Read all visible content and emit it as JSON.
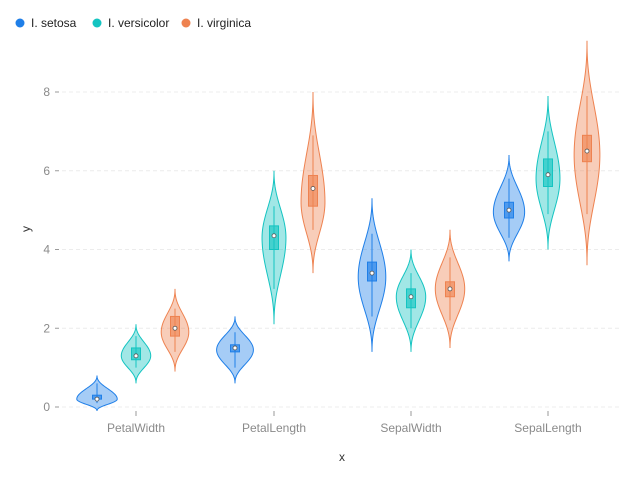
{
  "chart_data": {
    "type": "violin",
    "title": "",
    "xlabel": "x",
    "ylabel": "y",
    "ylim": [
      -0.2,
      9.6
    ],
    "yticks": [
      0,
      2,
      4,
      6,
      8
    ],
    "legend_position": "top-left",
    "grid": true,
    "categories": [
      "PetalWidth",
      "PetalLength",
      "SepalWidth",
      "SepalLength"
    ],
    "series": [
      {
        "name": "I. setosa",
        "color": "#1f7fe8",
        "groups": [
          {
            "min": 0.1,
            "q1": 0.2,
            "median": 0.2,
            "q3": 0.3,
            "max": 0.6,
            "kde_min": -0.1,
            "kde_max": 0.8,
            "peak_half_width": 0.22,
            "peak_at": 0.2
          },
          {
            "min": 1.0,
            "q1": 1.4,
            "median": 1.5,
            "q3": 1.58,
            "max": 1.9,
            "kde_min": 0.6,
            "kde_max": 2.3,
            "peak_half_width": 0.2,
            "peak_at": 1.45
          },
          {
            "min": 2.3,
            "q1": 3.2,
            "median": 3.4,
            "q3": 3.68,
            "max": 4.4,
            "kde_min": 1.4,
            "kde_max": 5.3,
            "peak_half_width": 0.15,
            "peak_at": 3.3
          },
          {
            "min": 4.3,
            "q1": 4.8,
            "median": 5.0,
            "q3": 5.2,
            "max": 5.8,
            "kde_min": 3.7,
            "kde_max": 6.4,
            "peak_half_width": 0.17,
            "peak_at": 4.95
          }
        ]
      },
      {
        "name": "I. versicolor",
        "color": "#14c4c1",
        "groups": [
          {
            "min": 1.0,
            "q1": 1.2,
            "median": 1.3,
            "q3": 1.5,
            "max": 1.8,
            "kde_min": 0.6,
            "kde_max": 2.1,
            "peak_half_width": 0.16,
            "peak_at": 1.3
          },
          {
            "min": 3.0,
            "q1": 4.0,
            "median": 4.35,
            "q3": 4.6,
            "max": 5.1,
            "kde_min": 2.1,
            "kde_max": 6.0,
            "peak_half_width": 0.13,
            "peak_at": 4.3
          },
          {
            "min": 2.0,
            "q1": 2.52,
            "median": 2.8,
            "q3": 3.0,
            "max": 3.4,
            "kde_min": 1.4,
            "kde_max": 4.0,
            "peak_half_width": 0.16,
            "peak_at": 2.8
          },
          {
            "min": 4.9,
            "q1": 5.6,
            "median": 5.9,
            "q3": 6.3,
            "max": 7.0,
            "kde_min": 4.0,
            "kde_max": 7.9,
            "peak_half_width": 0.13,
            "peak_at": 5.8
          }
        ]
      },
      {
        "name": "I. virginica",
        "color": "#ee8250",
        "groups": [
          {
            "min": 1.4,
            "q1": 1.8,
            "median": 2.0,
            "q3": 2.3,
            "max": 2.5,
            "kde_min": 0.9,
            "kde_max": 3.0,
            "peak_half_width": 0.15,
            "peak_at": 1.9
          },
          {
            "min": 4.5,
            "q1": 5.1,
            "median": 5.55,
            "q3": 5.88,
            "max": 6.9,
            "kde_min": 3.4,
            "kde_max": 8.0,
            "peak_half_width": 0.13,
            "peak_at": 5.2
          },
          {
            "min": 2.2,
            "q1": 2.8,
            "median": 3.0,
            "q3": 3.18,
            "max": 3.8,
            "kde_min": 1.5,
            "kde_max": 4.5,
            "peak_half_width": 0.16,
            "peak_at": 3.0
          },
          {
            "min": 4.9,
            "q1": 6.23,
            "median": 6.5,
            "q3": 6.9,
            "max": 7.9,
            "kde_min": 3.6,
            "kde_max": 9.3,
            "peak_half_width": 0.14,
            "peak_at": 6.4
          }
        ]
      }
    ]
  }
}
